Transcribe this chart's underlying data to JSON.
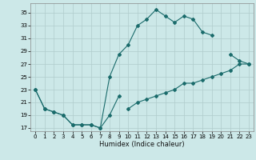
{
  "title": "",
  "xlabel": "Humidex (Indice chaleur)",
  "bg_color": "#cce8e8",
  "grid_color": "#b0cccc",
  "line_color": "#1a6b6b",
  "xlim": [
    -0.5,
    23.5
  ],
  "ylim": [
    16.5,
    36.5
  ],
  "xticks": [
    0,
    1,
    2,
    3,
    4,
    5,
    6,
    7,
    8,
    9,
    10,
    11,
    12,
    13,
    14,
    15,
    16,
    17,
    18,
    19,
    20,
    21,
    22,
    23
  ],
  "yticks": [
    17,
    19,
    21,
    23,
    25,
    27,
    29,
    31,
    33,
    35
  ],
  "line1_y": [
    23,
    20,
    19.5,
    19,
    17.5,
    17.5,
    17.5,
    17,
    19,
    22,
    null,
    null,
    null,
    null,
    null,
    null,
    null,
    null,
    null,
    null,
    null,
    null,
    null,
    null
  ],
  "line2_y": [
    23,
    20,
    19.5,
    19,
    17.5,
    17.5,
    17.5,
    17,
    25,
    28.5,
    30,
    33,
    34,
    35.5,
    34.5,
    33.5,
    34.5,
    34,
    32,
    31.5,
    null,
    28.5,
    27.5,
    27
  ],
  "line3_y": [
    null,
    null,
    null,
    null,
    null,
    null,
    null,
    null,
    null,
    null,
    20,
    21,
    21.5,
    22,
    22.5,
    23,
    24,
    24,
    24.5,
    25,
    25.5,
    26,
    27,
    27
  ]
}
